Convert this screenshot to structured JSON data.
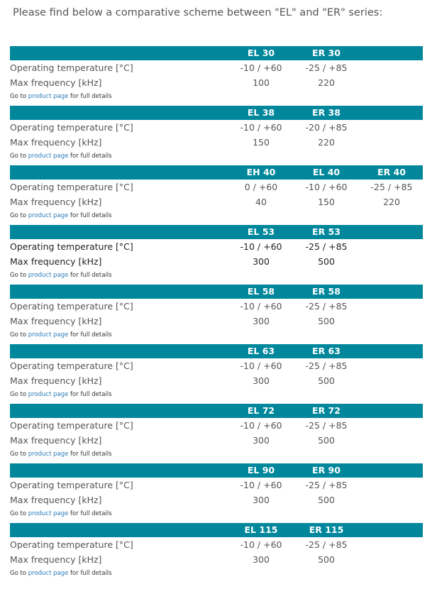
{
  "intro": "Please find below a comparative scheme between \"EL\" and \"ER\" series:",
  "labels": {
    "temp": "Operating temperature [°C]",
    "freq": "Max frequency [kHz]",
    "goto": "Go to",
    "link": "product page",
    "rest": "for full details"
  },
  "colors": {
    "header": "#00879b",
    "link": "#2b7bb9"
  },
  "blocks": [
    {
      "cols": [
        "EL 30",
        "ER 30"
      ],
      "temp": [
        "-10 / +60",
        "-25 / +85"
      ],
      "freq": [
        "100",
        "220"
      ]
    },
    {
      "cols": [
        "EL 38",
        "ER 38"
      ],
      "temp": [
        "-10 / +60",
        "-20 / +85"
      ],
      "freq": [
        "150",
        "220"
      ]
    },
    {
      "cols": [
        "EH 40",
        "EL 40",
        "ER 40"
      ],
      "temp": [
        "0 / +60",
        "-10 / +60",
        "-25 / +85"
      ],
      "freq": [
        "40",
        "150",
        "220"
      ]
    },
    {
      "cols": [
        "EL 53",
        "ER 53"
      ],
      "temp": [
        "-10 / +60",
        "-25 / +85"
      ],
      "freq": [
        "300",
        "500"
      ]
    },
    {
      "cols": [
        "EL 58",
        "ER 58"
      ],
      "temp": [
        "-10 / +60",
        "-25 / +85"
      ],
      "freq": [
        "300",
        "500"
      ]
    },
    {
      "cols": [
        "EL 63",
        "ER 63"
      ],
      "temp": [
        "-10 / +60",
        "-25 / +85"
      ],
      "freq": [
        "300",
        "500"
      ]
    },
    {
      "cols": [
        "EL 72",
        "ER 72"
      ],
      "temp": [
        "-10 / +60",
        "-25 / +85"
      ],
      "freq": [
        "300",
        "500"
      ]
    },
    {
      "cols": [
        "EL 90",
        "ER 90"
      ],
      "temp": [
        "-10 / +60",
        "-25 / +85"
      ],
      "freq": [
        "300",
        "500"
      ]
    },
    {
      "cols": [
        "EL 115",
        "ER 115"
      ],
      "temp": [
        "-10 / +60",
        "-25 / +85"
      ],
      "freq": [
        "300",
        "500"
      ]
    }
  ]
}
